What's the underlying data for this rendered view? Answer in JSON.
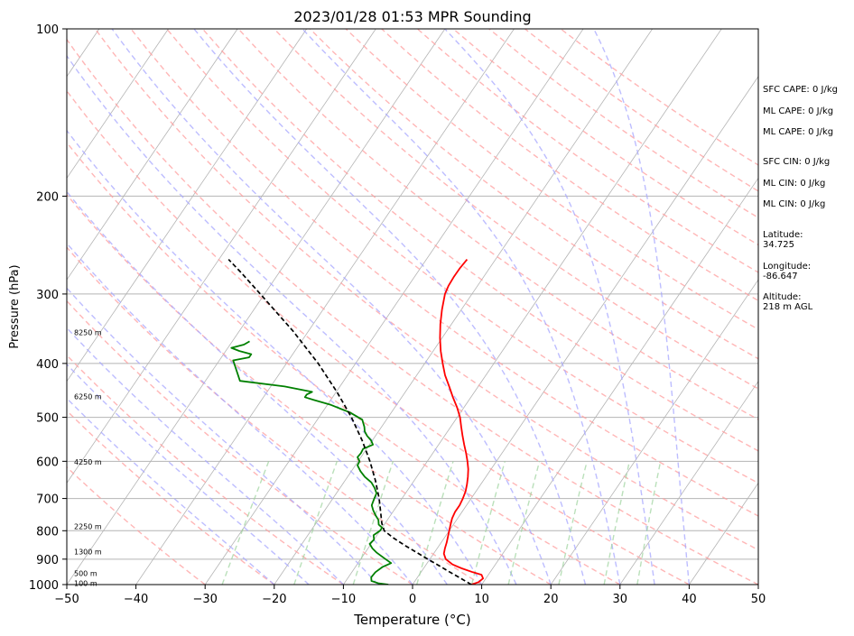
{
  "chart_data": {
    "type": "line",
    "title": "2023/01/28 01:53 MPR Sounding",
    "xlabel": "Temperature (°C)",
    "ylabel": "Pressure (hPa)",
    "xlim": [
      -50,
      50
    ],
    "ylim": [
      1000,
      100
    ],
    "y_scale": "log",
    "x_ticks": [
      -50,
      -40,
      -30,
      -20,
      -10,
      0,
      10,
      20,
      30,
      40,
      50
    ],
    "y_ticks": [
      100,
      200,
      300,
      400,
      500,
      600,
      700,
      800,
      900,
      1000
    ],
    "grid": true,
    "series": [
      {
        "kind": "temperature",
        "color": "#ff0000",
        "pressure": [
          1000,
          990,
          975,
          960,
          950,
          935,
          920,
          900,
          880,
          860,
          840,
          820,
          800,
          780,
          760,
          740,
          720,
          700,
          680,
          660,
          640,
          620,
          600,
          580,
          560,
          540,
          520,
          500,
          480,
          460,
          440,
          420,
          400,
          380,
          360,
          340,
          320,
          300,
          290,
          280,
          270,
          260
        ],
        "temperature": [
          8.5,
          9.3,
          9.6,
          9.0,
          7.5,
          5.5,
          3.8,
          2.3,
          1.5,
          1.1,
          0.8,
          0.4,
          0.0,
          -0.4,
          -0.8,
          -1.0,
          -1.0,
          -1.2,
          -1.5,
          -2.0,
          -2.6,
          -3.3,
          -4.2,
          -5.2,
          -6.3,
          -7.4,
          -8.5,
          -9.6,
          -11.0,
          -12.6,
          -14.2,
          -15.9,
          -17.4,
          -18.9,
          -20.3,
          -21.6,
          -22.8,
          -23.9,
          -24.2,
          -24.3,
          -24.3,
          -24.1
        ]
      },
      {
        "kind": "dewpoint",
        "color": "#008000",
        "pressure": [
          1000,
          995,
          985,
          970,
          950,
          930,
          915,
          905,
          890,
          875,
          860,
          845,
          830,
          815,
          800,
          790,
          780,
          765,
          750,
          735,
          720,
          700,
          685,
          670,
          655,
          640,
          625,
          610,
          600,
          590,
          580,
          570,
          560,
          550,
          540,
          530,
          520,
          505,
          490,
          475,
          465,
          460,
          455,
          450,
          440,
          430,
          395,
          390,
          385,
          380,
          375,
          370,
          365
        ],
        "temperature": [
          -3.5,
          -5.0,
          -6.3,
          -6.7,
          -6.6,
          -6.1,
          -5.2,
          -6.0,
          -7.2,
          -8.4,
          -9.4,
          -10.2,
          -10.0,
          -10.5,
          -10.0,
          -10.0,
          -10.8,
          -11.3,
          -12.2,
          -13.0,
          -13.7,
          -14.0,
          -14.2,
          -15.0,
          -16.0,
          -17.5,
          -18.7,
          -19.7,
          -19.8,
          -20.5,
          -20.4,
          -20.5,
          -19.5,
          -20.2,
          -21.2,
          -22.0,
          -22.5,
          -23.5,
          -26.0,
          -29.5,
          -32.5,
          -34.0,
          -34.0,
          -33.5,
          -38.0,
          -45.0,
          -48.0,
          -46.0,
          -46.0,
          -48.0,
          -49.5,
          -48.0,
          -47.5
        ]
      },
      {
        "kind": "parcel",
        "color": "#000000",
        "dashed": true,
        "pressure": [
          1000,
          975,
          950,
          925,
          900,
          875,
          850,
          825,
          800,
          775,
          750,
          700,
          650,
          600,
          550,
          500,
          450,
          400,
          350,
          300,
          275,
          260
        ],
        "temperature": [
          8.5,
          6.4,
          4.2,
          2.0,
          -0.3,
          -2.6,
          -5.0,
          -7.3,
          -9.4,
          -10.5,
          -11.4,
          -13.3,
          -15.6,
          -18.3,
          -21.5,
          -25.3,
          -29.9,
          -35.4,
          -42.2,
          -50.6,
          -55.4,
          -58.6
        ]
      }
    ],
    "height_labels": [
      {
        "pressure": 352,
        "text": "8250 m"
      },
      {
        "pressure": 459,
        "text": "6250 m"
      },
      {
        "pressure": 601,
        "text": "4250 m"
      },
      {
        "pressure": 786,
        "text": "2250 m"
      },
      {
        "pressure": 873,
        "text": "1300 m"
      },
      {
        "pressure": 955,
        "text": "500 m"
      },
      {
        "pressure": 995,
        "text": "100 m"
      }
    ],
    "reference_line_colors": {
      "isotherm": "#b4b4b4",
      "dry_adiabat": "#ff9e9e",
      "moist_adiabat": "#a7a7ff",
      "mixing_ratio": "#9cd39c",
      "isobar": "#b4b4b4"
    }
  },
  "side_info": {
    "sfc_cape": "SFC CAPE: 0 J/kg",
    "ml_cape_1": "ML CAPE: 0 J/kg",
    "ml_cape_2": "ML CAPE: 0 J/kg",
    "sfc_cin": "SFC CIN: 0 J/kg",
    "ml_cin_1": "ML CIN: 0 J/kg",
    "ml_cin_2": "ML CIN: 0 J/kg",
    "latitude": "Latitude:\n34.725",
    "longitude": "Longitude:\n-86.647",
    "altitude": "Altitude:\n218 m AGL"
  }
}
